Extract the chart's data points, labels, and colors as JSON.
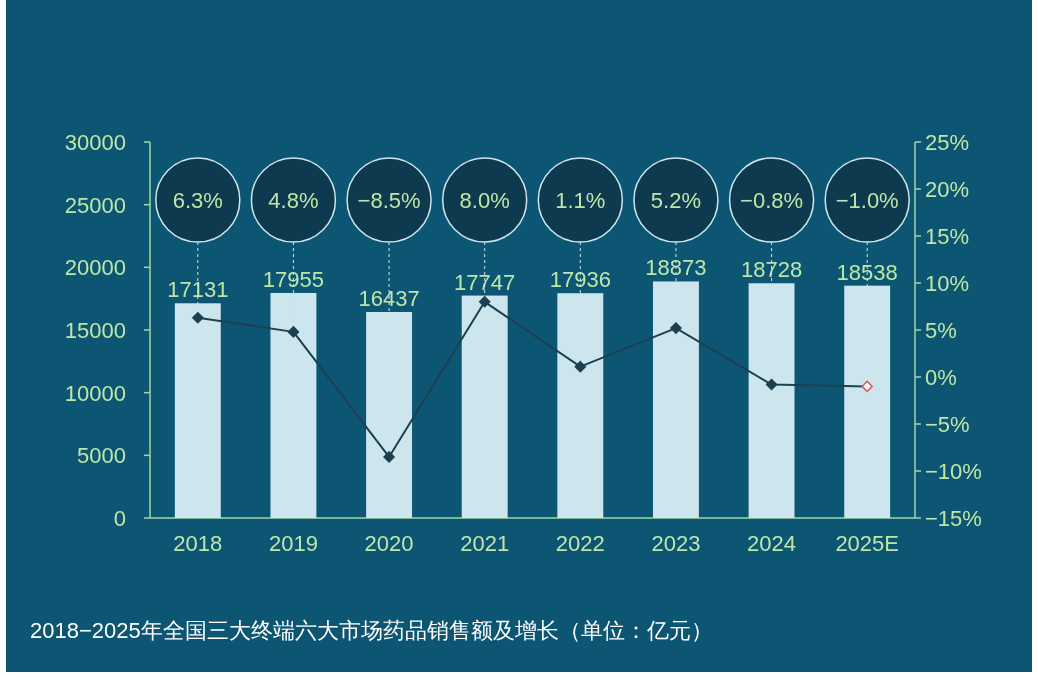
{
  "chart_data": {
    "type": "bar",
    "title": "2018−2025年全国三大终端六大市场药品销售额及增长（单位：亿元）",
    "categories": [
      "2018",
      "2019",
      "2020",
      "2021",
      "2022",
      "2023",
      "2024",
      "2025E"
    ],
    "series": [
      {
        "color": "#cde6ee",
        "values": [
          17131,
          17955,
          16437,
          17747,
          17936,
          18873,
          18728,
          18538
        ],
        "value_labels": [
          "17131",
          "17955",
          "16437",
          "17747",
          "17936",
          "18873",
          "18728",
          "18538"
        ]
      },
      {
        "type": "line",
        "axis": "y2",
        "color": "#1d3f52",
        "colors": [
          "#1d3f52",
          "#1d3f52",
          "#1d3f52",
          "#1d3f52",
          "#1d3f52",
          "#1d3f52",
          "#1d3f52",
          "#e05a5a"
        ],
        "values": [
          6.3,
          4.8,
          -8.5,
          8.0,
          1.1,
          5.2,
          -0.8,
          -1.0
        ]
      }
    ],
    "annotations": [
      "6.3%",
      "4.8%",
      "−8.5%",
      "8.0%",
      "1.1%",
      "5.2%",
      "−0.8%",
      "−1.0%"
    ],
    "ylim": [
      0,
      30000
    ],
    "yticks": [
      0,
      5000,
      10000,
      15000,
      20000,
      25000,
      30000
    ],
    "y2lim": [
      -15,
      25
    ],
    "y2ticks": [
      {
        "value": -15,
        "label": "−15%"
      },
      {
        "value": -10,
        "label": "−10%"
      },
      {
        "value": -5,
        "label": "−5%"
      },
      {
        "value": 0,
        "label": "0%"
      },
      {
        "value": 5,
        "label": "5%"
      },
      {
        "value": 10,
        "label": "10%"
      },
      {
        "value": 15,
        "label": "15%"
      },
      {
        "value": 20,
        "label": "20%"
      },
      {
        "value": 25,
        "label": "25%"
      }
    ],
    "marker": "diamond",
    "grid": false
  }
}
